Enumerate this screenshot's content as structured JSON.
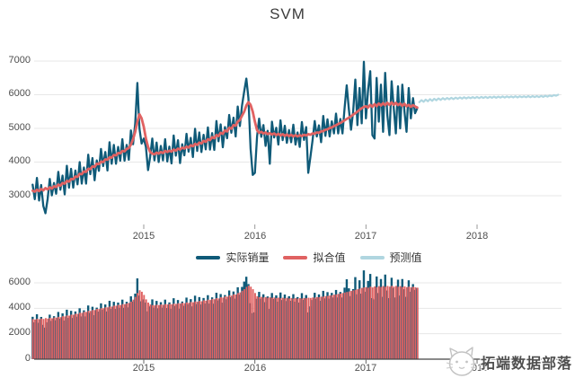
{
  "title": "SVM",
  "colors": {
    "actual": "#0f5a78",
    "fitted": "#e06262",
    "predicted": "#b0d6e0",
    "grid": "#e7e7e7",
    "tick": "#999999",
    "axis_line": "#444444",
    "axis_text": "#4e4e4e"
  },
  "legend": {
    "items": [
      {
        "label": "实际销量",
        "color_key": "actual"
      },
      {
        "label": "拟合值",
        "color_key": "fitted"
      },
      {
        "label": "预测值",
        "color_key": "predicted"
      }
    ]
  },
  "watermark": {
    "text": "拓端数据部落",
    "logo": "cat-face-logo"
  },
  "top_chart": {
    "y_ticks": [
      "7000",
      "6000",
      "5000",
      "4000",
      "3000"
    ],
    "x_ticks": [
      "2015",
      "2016",
      "2017",
      "2018"
    ]
  },
  "bottom_chart": {
    "y_ticks": [
      "6000",
      "4000",
      "2000",
      "0"
    ],
    "x_ticks": [
      "2015",
      "2016",
      "2017",
      "2018"
    ]
  },
  "chart_data": [
    {
      "type": "line",
      "title": "SVM",
      "x_unit": "decimal_year_weekly",
      "x_start": 2014.0,
      "x_step": 0.019231,
      "xlim": [
        2013.98,
        2018.78
      ],
      "ylim": [
        2100,
        7250
      ],
      "y_gridlines": [
        3000,
        4000,
        5000,
        6000,
        7000
      ],
      "x_tick_years": [
        2015,
        2016,
        2017,
        2018
      ],
      "legend_position": "bottom",
      "series": [
        {
          "name": "实际销量",
          "color_key": "actual",
          "values": [
            3330,
            2900,
            3530,
            2860,
            3320,
            2700,
            2480,
            2900,
            3500,
            3010,
            3380,
            3060,
            3710,
            3180,
            3600,
            3040,
            3890,
            3240,
            3800,
            3240,
            3750,
            3340,
            4000,
            3360,
            3840,
            3360,
            4220,
            3640,
            4120,
            3460,
            4050,
            3740,
            4390,
            3880,
            4300,
            3750,
            4590,
            3950,
            4510,
            3950,
            4450,
            4040,
            4680,
            4040,
            4510,
            4070,
            4940,
            4530,
            5150,
            6350,
            5000,
            4550,
            4700,
            4450,
            3760,
            4150,
            4700,
            4050,
            4580,
            4000,
            4480,
            4050,
            4680,
            4020,
            4460,
            3960,
            4790,
            4190,
            4650,
            3970,
            4530,
            4200,
            4840,
            4310,
            4720,
            4150,
            4990,
            4330,
            4880,
            4300,
            4810,
            4380,
            5030,
            4370,
            4860,
            4360,
            5220,
            4620,
            5120,
            4440,
            5040,
            4710,
            5400,
            4870,
            5320,
            4760,
            5650,
            5070,
            5680,
            6100,
            6480,
            5900,
            4400,
            3620,
            3680,
            4750,
            5290,
            4750,
            5100,
            4480,
            4930,
            3950,
            5200,
            4730,
            5020,
            4520,
            5240,
            4650,
            5080,
            4570,
            4950,
            4590,
            5110,
            4520,
            4880,
            4450,
            5190,
            4660,
            5040,
            3680,
            4150,
            4650,
            5220,
            4760,
            5090,
            4590,
            5370,
            4780,
            5270,
            4760,
            5210,
            4850,
            5440,
            4850,
            5280,
            4850,
            5620,
            6280,
            5570,
            4960,
            5510,
            6450,
            5100,
            6200,
            5150,
            6980,
            5300,
            6150,
            6700,
            4800,
            4700,
            6500,
            5200,
            6300,
            4900,
            6650,
            5400,
            4800,
            6400,
            5600,
            4850,
            6250,
            5000,
            6300,
            5500,
            4900,
            6200,
            5300,
            5900,
            5450,
            5600
          ]
        },
        {
          "name": "拟合值",
          "color_key": "fitted",
          "values": [
            3150,
            3120,
            3180,
            3140,
            3200,
            3160,
            3230,
            3190,
            3250,
            3210,
            3280,
            3260,
            3330,
            3300,
            3380,
            3360,
            3440,
            3420,
            3500,
            3490,
            3570,
            3560,
            3650,
            3640,
            3720,
            3710,
            3800,
            3790,
            3870,
            3860,
            3950,
            3940,
            4010,
            4000,
            4080,
            4070,
            4140,
            4130,
            4210,
            4200,
            4270,
            4260,
            4330,
            4320,
            4390,
            4420,
            4520,
            4680,
            4900,
            5200,
            5420,
            5300,
            5050,
            4700,
            4450,
            4300,
            4250,
            4230,
            4280,
            4250,
            4300,
            4270,
            4330,
            4300,
            4340,
            4310,
            4370,
            4340,
            4400,
            4370,
            4430,
            4400,
            4460,
            4430,
            4500,
            4470,
            4540,
            4510,
            4580,
            4550,
            4630,
            4600,
            4680,
            4650,
            4740,
            4710,
            4800,
            4770,
            4870,
            4840,
            4940,
            4910,
            5020,
            4990,
            5100,
            5080,
            5200,
            5250,
            5380,
            5500,
            5680,
            5780,
            5700,
            5500,
            5200,
            4950,
            4870,
            4900,
            4850,
            4880,
            4830,
            4860,
            4820,
            4850,
            4800,
            4840,
            4790,
            4830,
            4780,
            4820,
            4770,
            4810,
            4760,
            4800,
            4760,
            4800,
            4770,
            4810,
            4790,
            4830,
            4810,
            4850,
            4840,
            4880,
            4870,
            4910,
            4920,
            4960,
            4970,
            5010,
            5030,
            5070,
            5090,
            5130,
            5160,
            5200,
            5240,
            5280,
            5320,
            5360,
            5410,
            5450,
            5500,
            5550,
            5600,
            5640,
            5660,
            5620,
            5700,
            5640,
            5720,
            5660,
            5740,
            5680,
            5750,
            5690,
            5760,
            5700,
            5770,
            5700,
            5760,
            5690,
            5740,
            5670,
            5730,
            5660,
            5700,
            5640,
            5690,
            5650,
            5620
          ]
        },
        {
          "name": "预测值",
          "color_key": "predicted",
          "x_start": 2017.48,
          "values": [
            5780,
            5840,
            5790,
            5855,
            5805,
            5870,
            5820,
            5880,
            5835,
            5890,
            5845,
            5900,
            5855,
            5905,
            5865,
            5910,
            5870,
            5915,
            5880,
            5920,
            5885,
            5925,
            5890,
            5925,
            5895,
            5930,
            5900,
            5935,
            5900,
            5935,
            5905,
            5940,
            5905,
            5940,
            5910,
            5945,
            5910,
            5945,
            5915,
            5950,
            5915,
            5950,
            5920,
            5950,
            5920,
            5955,
            5920,
            5955,
            5925,
            5955,
            5925,
            5960,
            5925,
            5960,
            5930,
            5960,
            5930,
            5965,
            5935,
            5970,
            5945,
            5980,
            5955,
            5990,
            5970,
            6000
          ]
        }
      ]
    },
    {
      "type": "bar",
      "x_unit": "decimal_year_weekly",
      "x_start": 2014.0,
      "x_step": 0.019231,
      "ylim": [
        0,
        7400
      ],
      "y_gridlines": [
        2000,
        4000,
        6000
      ],
      "x_tick_years": [
        2015,
        2016,
        2017,
        2018
      ],
      "series": [
        {
          "name": "实际销量",
          "color_key": "actual",
          "values_ref": "chart_data.0.series.0.values"
        },
        {
          "name": "拟合值",
          "color_key": "fitted",
          "values_ref": "chart_data.0.series.1.values"
        }
      ]
    }
  ]
}
